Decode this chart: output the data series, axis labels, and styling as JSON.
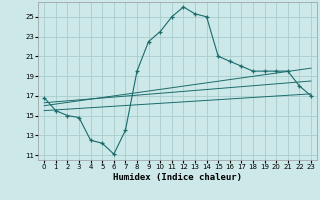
{
  "xlabel": "Humidex (Indice chaleur)",
  "background_color": "#cce8e8",
  "grid_color": "#aacccc",
  "line_color": "#1a6b6b",
  "xlim": [
    -0.5,
    23.5
  ],
  "ylim": [
    10.5,
    26.5
  ],
  "xticks": [
    0,
    1,
    2,
    3,
    4,
    5,
    6,
    7,
    8,
    9,
    10,
    11,
    12,
    13,
    14,
    15,
    16,
    17,
    18,
    19,
    20,
    21,
    22,
    23
  ],
  "yticks": [
    11,
    13,
    15,
    17,
    19,
    21,
    23,
    25
  ],
  "main_x": [
    0,
    1,
    2,
    3,
    4,
    5,
    6,
    7,
    8,
    9,
    10,
    11,
    12,
    13,
    14,
    15,
    16,
    17,
    18,
    19,
    20,
    21,
    22,
    23
  ],
  "main_y": [
    16.8,
    15.5,
    15.0,
    14.8,
    12.5,
    12.2,
    11.1,
    13.5,
    19.5,
    22.5,
    23.5,
    25.0,
    26.0,
    25.3,
    25.0,
    21.0,
    20.5,
    20.0,
    19.5,
    19.5,
    19.5,
    19.5,
    18.0,
    17.0
  ],
  "trend1_x": [
    0,
    23
  ],
  "trend1_y": [
    15.5,
    17.2
  ],
  "trend2_x": [
    0,
    23
  ],
  "trend2_y": [
    16.0,
    19.8
  ],
  "trend3_x": [
    0,
    23
  ],
  "trend3_y": [
    16.3,
    18.5
  ]
}
